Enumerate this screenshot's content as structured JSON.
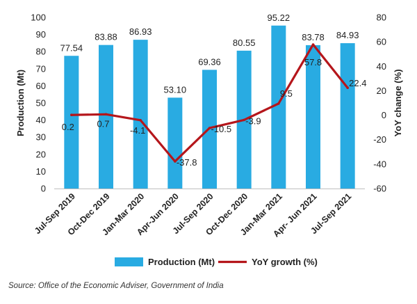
{
  "chart_data": {
    "type": "bar+line",
    "categories": [
      "Jul-Sep 2019",
      "Oct-Dec 2019",
      "Jan-Mar 2020",
      "Apr-Jun 2020",
      "Jul-Sep 2020",
      "Oct-Dec 2020",
      "Jan-Mar 2021",
      "Apr- Jun 2021",
      "Jul-Sep 2021"
    ],
    "series": [
      {
        "name": "Production (Mt)",
        "kind": "bar",
        "axis": "left",
        "color": "#29abe2",
        "values": [
          77.54,
          83.88,
          86.93,
          53.1,
          69.36,
          80.55,
          95.22,
          83.78,
          84.93
        ],
        "labels": [
          "77.54",
          "83.88",
          "86.93",
          "53.10",
          "69.36",
          "80.55",
          "95.22",
          "83.78",
          "84.93"
        ]
      },
      {
        "name": "YoY growth (%)",
        "kind": "line",
        "axis": "right",
        "color": "#b5161b",
        "values": [
          0.2,
          0.7,
          -4.1,
          -37.8,
          -10.5,
          -3.9,
          9.5,
          57.8,
          22.4
        ],
        "labels": [
          "0.2",
          "0.7",
          "-4.1",
          "-37.8",
          "-10.5",
          "-3.9",
          "9.5",
          "57.8",
          "22.4"
        ]
      }
    ],
    "ylabel": "Production (Mt)",
    "y2label": "YoY change (%)",
    "ylim": [
      0,
      100
    ],
    "y2lim": [
      -60,
      80
    ],
    "yticks": [
      "0",
      "10",
      "20",
      "30",
      "40",
      "50",
      "60",
      "70",
      "80",
      "90",
      "100"
    ],
    "y2ticks": [
      "-60",
      "-40",
      "-20",
      "0",
      "20",
      "40",
      "60",
      "80"
    ],
    "legend_position": "bottom"
  },
  "source": "Source: Office of the Economic Adviser, Government of India"
}
